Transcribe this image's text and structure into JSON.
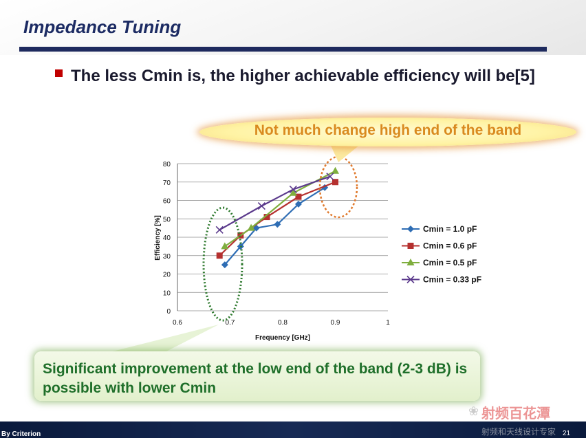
{
  "slide": {
    "title": "Impedance Tuning",
    "bullet": "The less Cmin is, the higher achievable efficiency will be[5]"
  },
  "callouts": {
    "top": "Not much change high end of the band",
    "bottom": "Significant improvement at the low end of the band (2-3 dB) is possible with lower Cmin"
  },
  "footer": {
    "left_text": "By Criterion",
    "page_number": "21"
  },
  "watermark": {
    "line1": "射频百花潭",
    "line2": "射频和天线设计专家"
  },
  "colors": {
    "title": "#1c2b63",
    "bullet_square": "#c00000",
    "top_callout_text": "#d98a1f",
    "bottom_callout_text": "#1f6f2a"
  },
  "chart_data": {
    "type": "line",
    "xlabel": "Frequency [GHz]",
    "ylabel": "Efficiency [%]",
    "xlim": [
      0.6,
      1.0
    ],
    "ylim": [
      0,
      80
    ],
    "x_ticks": [
      "0.6",
      "0.7",
      "0.8",
      "0.9",
      "1"
    ],
    "y_ticks": [
      "0",
      "10",
      "20",
      "30",
      "40",
      "50",
      "60",
      "70",
      "80"
    ],
    "grid": "horizontal",
    "legend_position": "right",
    "series": [
      {
        "name": "Cmin = 1.0 pF",
        "color": "#2e6db4",
        "marker": "diamond",
        "x": [
          0.69,
          0.72,
          0.75,
          0.79,
          0.83,
          0.88
        ],
        "y": [
          25,
          35,
          45,
          47,
          58,
          67
        ]
      },
      {
        "name": "Cmin = 0.6 pF",
        "color": "#b5302f",
        "marker": "square",
        "x": [
          0.68,
          0.72,
          0.77,
          0.83,
          0.9
        ],
        "y": [
          30,
          41,
          51,
          62,
          70
        ]
      },
      {
        "name": "Cmin = 0.5 pF",
        "color": "#7fae3e",
        "marker": "triangle",
        "x": [
          0.69,
          0.74,
          0.82,
          0.9
        ],
        "y": [
          35,
          45,
          64,
          76
        ]
      },
      {
        "name": "Cmin = 0.33 pF",
        "color": "#5b3a8c",
        "marker": "x",
        "x": [
          0.68,
          0.76,
          0.82,
          0.89
        ],
        "y": [
          44,
          57,
          66,
          73
        ]
      }
    ]
  }
}
